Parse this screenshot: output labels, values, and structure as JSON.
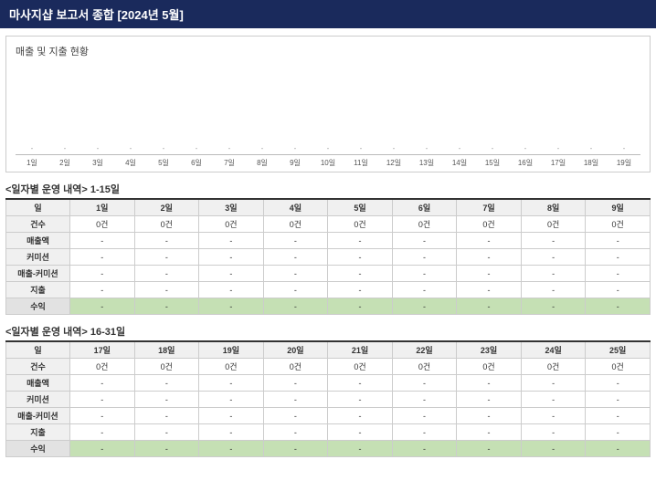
{
  "header": {
    "title": "마사지샵 보고서 종합 [2024년 5월]"
  },
  "chart": {
    "title": "매출 및 지출 현황",
    "type": "bar",
    "x_labels": [
      "1일",
      "2일",
      "3일",
      "4일",
      "5일",
      "6일",
      "7일",
      "8일",
      "9일",
      "10일",
      "11일",
      "12일",
      "13일",
      "14일",
      "15일",
      "16일",
      "17일",
      "18일",
      "19일"
    ],
    "placeholders": [
      "-",
      "-",
      "-",
      "-",
      "-",
      "-",
      "-",
      "-",
      "-",
      "-",
      "-",
      "-",
      "-",
      "-",
      "-",
      "-",
      "-",
      "-",
      "-"
    ],
    "background_color": "#ffffff",
    "border_color": "#cccccc",
    "axis_color": "#bbbbbb",
    "label_fontsize": 8
  },
  "tables": {
    "row_headers": [
      "일",
      "건수",
      "매출액",
      "커미션",
      "매출-커미션",
      "지출",
      "수익"
    ],
    "colors": {
      "header_bg": "#f0f0f0",
      "profit_bg": "#c5e0b4",
      "border": "#cccccc",
      "top_border": "#333333"
    },
    "t1": {
      "title": "<일자별 운영 내역> 1-15일",
      "days": [
        "1일",
        "2일",
        "3일",
        "4일",
        "5일",
        "6일",
        "7일",
        "8일",
        "9일"
      ],
      "counts": [
        "0건",
        "0건",
        "0건",
        "0건",
        "0건",
        "0건",
        "0건",
        "0건",
        "0건"
      ],
      "cells": {
        "sales": [
          "-",
          "-",
          "-",
          "-",
          "-",
          "-",
          "-",
          "-",
          "-"
        ],
        "commission": [
          "-",
          "-",
          "-",
          "-",
          "-",
          "-",
          "-",
          "-",
          "-"
        ],
        "net": [
          "-",
          "-",
          "-",
          "-",
          "-",
          "-",
          "-",
          "-",
          "-"
        ],
        "expense": [
          "-",
          "-",
          "-",
          "-",
          "-",
          "-",
          "-",
          "-",
          "-"
        ],
        "profit": [
          "-",
          "-",
          "-",
          "-",
          "-",
          "-",
          "-",
          "-",
          "-"
        ]
      }
    },
    "t2": {
      "title": "<일자별 운영 내역> 16-31일",
      "days": [
        "17일",
        "18일",
        "19일",
        "20일",
        "21일",
        "22일",
        "23일",
        "24일",
        "25일"
      ],
      "counts": [
        "0건",
        "0건",
        "0건",
        "0건",
        "0건",
        "0건",
        "0건",
        "0건",
        "0건"
      ],
      "cells": {
        "sales": [
          "-",
          "-",
          "-",
          "-",
          "-",
          "-",
          "-",
          "-",
          "-"
        ],
        "commission": [
          "-",
          "-",
          "-",
          "-",
          "-",
          "-",
          "-",
          "-",
          "-"
        ],
        "net": [
          "-",
          "-",
          "-",
          "-",
          "-",
          "-",
          "-",
          "-",
          "-"
        ],
        "expense": [
          "-",
          "-",
          "-",
          "-",
          "-",
          "-",
          "-",
          "-",
          "-"
        ],
        "profit": [
          "-",
          "-",
          "-",
          "-",
          "-",
          "-",
          "-",
          "-",
          "-"
        ]
      }
    }
  }
}
